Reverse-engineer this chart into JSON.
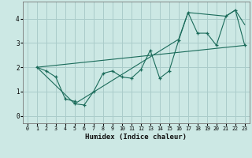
{
  "title": "",
  "xlabel": "Humidex (Indice chaleur)",
  "bg_color": "#cce8e4",
  "grid_color": "#aaccca",
  "line_color": "#1a6b5a",
  "xlim": [
    -0.5,
    23.5
  ],
  "ylim": [
    -0.3,
    4.7
  ],
  "xticks": [
    0,
    1,
    2,
    3,
    4,
    5,
    6,
    7,
    8,
    9,
    10,
    11,
    12,
    13,
    14,
    15,
    16,
    17,
    18,
    19,
    20,
    21,
    22,
    23
  ],
  "yticks": [
    0,
    1,
    2,
    3,
    4
  ],
  "line1_x": [
    1,
    2,
    3,
    4,
    5,
    5,
    6,
    7,
    8,
    9,
    10,
    11,
    12,
    13,
    14,
    15,
    16,
    17,
    18,
    19,
    20,
    21,
    22,
    23
  ],
  "line1_y": [
    2.0,
    1.85,
    1.6,
    0.7,
    0.6,
    0.5,
    0.45,
    1.0,
    1.75,
    1.85,
    1.6,
    1.55,
    1.9,
    2.7,
    1.55,
    1.85,
    3.1,
    4.25,
    3.4,
    3.4,
    2.9,
    4.1,
    4.35,
    2.9
  ],
  "line2_x": [
    1,
    23
  ],
  "line2_y": [
    2.0,
    2.9
  ],
  "line3_x": [
    1,
    5,
    16,
    17,
    21,
    22,
    23
  ],
  "line3_y": [
    2.0,
    0.5,
    3.15,
    4.25,
    4.1,
    4.35,
    3.75
  ]
}
